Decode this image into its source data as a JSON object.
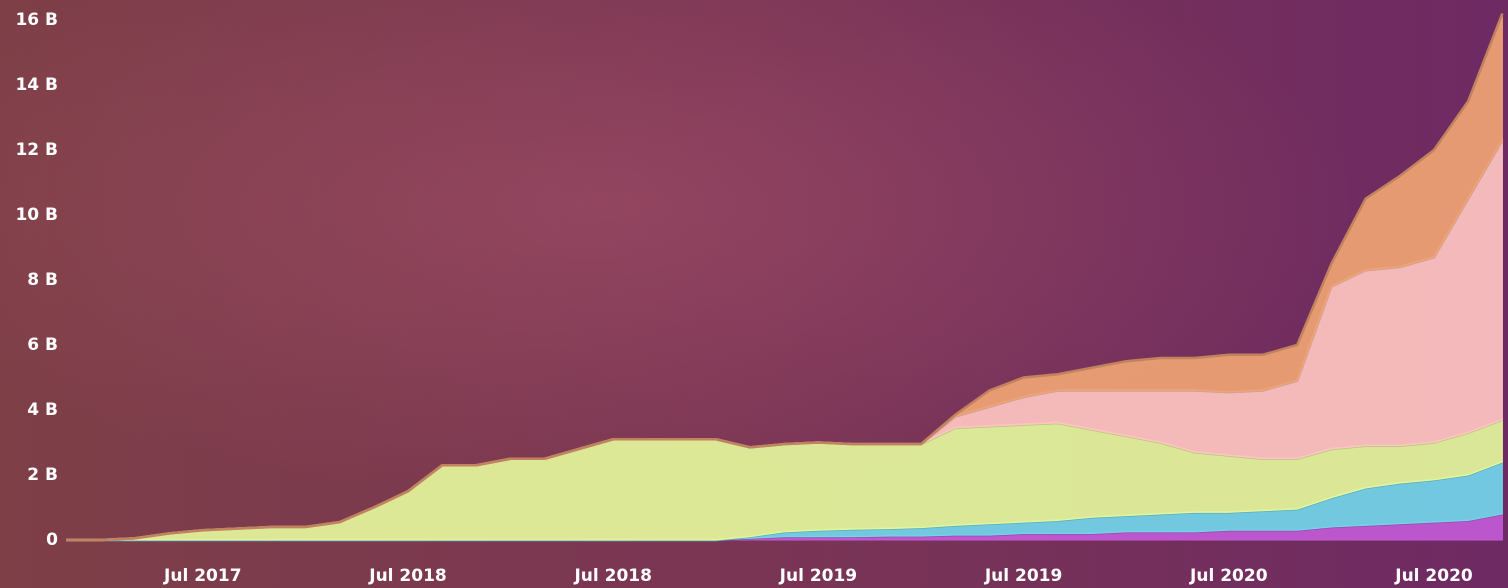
{
  "chart_data": {
    "type": "stacked-area",
    "categories": [
      null,
      null,
      null,
      null,
      "Jul 2017",
      null,
      null,
      null,
      null,
      null,
      "Jul 2018",
      null,
      null,
      null,
      null,
      null,
      "Jul 2018",
      null,
      null,
      null,
      null,
      null,
      "Jul 2019",
      null,
      null,
      null,
      null,
      null,
      "Jul 2019",
      null,
      null,
      null,
      null,
      null,
      "Jul 2020",
      null,
      null,
      null,
      null,
      null,
      "Jul 2020",
      null,
      null
    ],
    "series": [
      {
        "color": "#c25ad6",
        "values": [
          0,
          0,
          0,
          0,
          0,
          0,
          0,
          0,
          0,
          0,
          0,
          0,
          0,
          0,
          0,
          0,
          0,
          0,
          0,
          0,
          0.05,
          0.1,
          0.1,
          0.1,
          0.12,
          0.12,
          0.15,
          0.15,
          0.2,
          0.2,
          0.2,
          0.25,
          0.25,
          0.25,
          0.3,
          0.3,
          0.3,
          0.4,
          0.45,
          0.5,
          0.55,
          0.6,
          0.8
        ]
      },
      {
        "color": "#72d6ea",
        "values": [
          0,
          0,
          0,
          0,
          0,
          0,
          0,
          0,
          0,
          0,
          0,
          0,
          0,
          0,
          0,
          0,
          0,
          0,
          0,
          0,
          0.05,
          0.15,
          0.2,
          0.23,
          0.23,
          0.26,
          0.3,
          0.35,
          0.35,
          0.4,
          0.5,
          0.5,
          0.55,
          0.6,
          0.55,
          0.6,
          0.65,
          0.9,
          1.15,
          1.25,
          1.3,
          1.4,
          1.6
        ]
      },
      {
        "color": "#e4f79c",
        "values": [
          0,
          0,
          0.05,
          0.2,
          0.3,
          0.35,
          0.4,
          0.4,
          0.55,
          1.0,
          1.5,
          2.3,
          2.3,
          2.5,
          2.5,
          2.8,
          3.1,
          3.1,
          3.1,
          3.1,
          2.75,
          2.7,
          2.7,
          2.62,
          2.6,
          2.57,
          3.0,
          3.0,
          3.0,
          3.0,
          2.7,
          2.45,
          2.2,
          1.85,
          1.75,
          1.6,
          1.55,
          1.5,
          1.3,
          1.15,
          1.15,
          1.3,
          1.3
        ]
      },
      {
        "color": "#ffc5c1",
        "values": [
          0,
          0,
          0,
          0,
          0,
          0,
          0,
          0,
          0,
          0,
          0,
          0,
          0,
          0,
          0,
          0,
          0,
          0,
          0,
          0,
          0,
          0,
          0,
          0,
          0,
          0,
          0.35,
          0.6,
          0.85,
          1.0,
          1.2,
          1.4,
          1.6,
          1.9,
          1.95,
          2.1,
          2.4,
          5.0,
          5.4,
          5.5,
          5.7,
          7.2,
          8.6
        ]
      },
      {
        "color": "#f0a474",
        "values": [
          0,
          0,
          0,
          0,
          0,
          0,
          0,
          0,
          0,
          0,
          0,
          0,
          0,
          0,
          0,
          0,
          0,
          0,
          0,
          0,
          0,
          0,
          0,
          0,
          0,
          0,
          0.05,
          0.5,
          0.6,
          0.5,
          0.7,
          0.9,
          1.0,
          1.0,
          1.15,
          1.1,
          1.1,
          0.7,
          2.2,
          2.8,
          3.3,
          3.0,
          3.9
        ]
      }
    ],
    "ylim": [
      0,
      16
    ],
    "yticks": [
      0,
      {
        "value": 2,
        "label": "2 B"
      },
      {
        "value": 4,
        "label": "4 B"
      },
      {
        "value": 6,
        "label": "6 B"
      },
      {
        "value": 8,
        "label": "8 B"
      },
      {
        "value": 10,
        "label": "10 B"
      },
      {
        "value": 12,
        "label": "12 B"
      },
      {
        "value": 14,
        "label": "14 B"
      },
      {
        "value": 16,
        "label": "16 B"
      }
    ],
    "grid": false
  }
}
